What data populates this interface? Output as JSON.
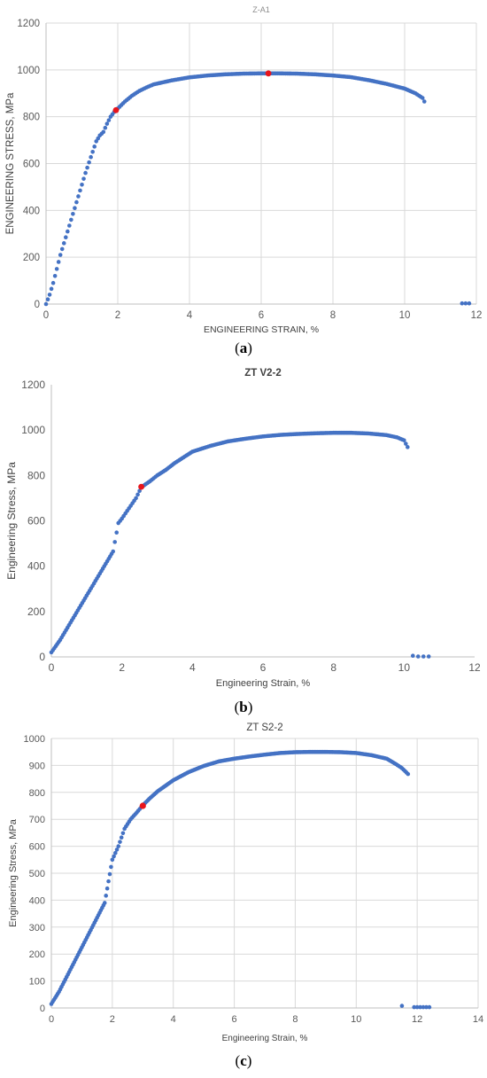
{
  "colors": {
    "series": "#4472C4",
    "marker": "#E8141B",
    "grid": "#D9D9D9",
    "axis_text": "#595959"
  },
  "panels": [
    {
      "caption": {
        "open": "(",
        "letter": "a",
        "close": ")"
      },
      "chart_data": {
        "type": "scatter",
        "title": "Z-A1",
        "xlabel": "ENGINEERING STRAIN, %",
        "ylabel": "ENGINEERING STRESS, MPa",
        "xlim": [
          0,
          12
        ],
        "ylim": [
          0,
          1200
        ],
        "xticks": [
          "0",
          "2",
          "4",
          "6",
          "8",
          "10",
          "12"
        ],
        "yticks": [
          "0",
          "200",
          "400",
          "600",
          "800",
          "1000",
          "1200"
        ],
        "grid": true,
        "legend": "none",
        "series": [
          {
            "points": [
              [
                0,
                0
              ],
              [
                0.1,
                40
              ],
              [
                0.2,
                90
              ],
              [
                0.3,
                150
              ],
              [
                0.4,
                210
              ],
              [
                0.5,
                260
              ],
              [
                0.6,
                310
              ],
              [
                0.7,
                360
              ],
              [
                0.8,
                410
              ],
              [
                0.9,
                460
              ],
              [
                1.0,
                510
              ],
              [
                1.1,
                560
              ],
              [
                1.2,
                605
              ],
              [
                1.3,
                650
              ],
              [
                1.4,
                695
              ],
              [
                1.5,
                720
              ],
              [
                1.6,
                735
              ],
              [
                1.7,
                770
              ],
              [
                1.8,
                800
              ],
              [
                1.9,
                820
              ],
              [
                2.0,
                835
              ],
              [
                2.2,
                865
              ],
              [
                2.4,
                890
              ],
              [
                2.6,
                910
              ],
              [
                2.8,
                925
              ],
              [
                3.0,
                938
              ],
              [
                3.5,
                955
              ],
              [
                4.0,
                968
              ],
              [
                4.5,
                976
              ],
              [
                5.0,
                981
              ],
              [
                5.5,
                984
              ],
              [
                6.0,
                985
              ],
              [
                6.5,
                985
              ],
              [
                7.0,
                984
              ],
              [
                7.5,
                981
              ],
              [
                8.0,
                976
              ],
              [
                8.5,
                969
              ],
              [
                9.0,
                956
              ],
              [
                9.5,
                940
              ],
              [
                10.0,
                920
              ],
              [
                10.3,
                900
              ],
              [
                10.5,
                880
              ],
              [
                10.55,
                865
              ]
            ],
            "fracture": [
              [
                11.6,
                3
              ],
              [
                11.7,
                3
              ],
              [
                11.8,
                3
              ]
            ]
          }
        ],
        "markers": [
          [
            1.95,
            828
          ],
          [
            6.2,
            985
          ]
        ]
      }
    },
    {
      "caption": {
        "open": "(",
        "letter": "b",
        "close": ")"
      },
      "chart_data": {
        "type": "scatter",
        "title": "ZT V2-2",
        "xlabel": "Engineering Strain, %",
        "ylabel": "Engineering Stress, MPa",
        "xlim": [
          0,
          12
        ],
        "ylim": [
          0,
          1200
        ],
        "xticks": [
          "0",
          "2",
          "4",
          "6",
          "8",
          "10",
          "12"
        ],
        "yticks": [
          "0",
          "200",
          "400",
          "600",
          "800",
          "1000",
          "1200"
        ],
        "grid": false,
        "legend": "none",
        "series": [
          {
            "points": [
              [
                0,
                20
              ],
              [
                0.25,
                75
              ],
              [
                0.5,
                140
              ],
              [
                0.75,
                205
              ],
              [
                1.0,
                270
              ],
              [
                1.25,
                335
              ],
              [
                1.5,
                400
              ],
              [
                1.75,
                465
              ],
              [
                1.9,
                590
              ],
              [
                2.0,
                610
              ],
              [
                2.2,
                655
              ],
              [
                2.4,
                700
              ],
              [
                2.55,
                748
              ],
              [
                2.8,
                775
              ],
              [
                3.0,
                800
              ],
              [
                3.25,
                825
              ],
              [
                3.5,
                855
              ],
              [
                3.75,
                880
              ],
              [
                4.0,
                905
              ],
              [
                4.5,
                930
              ],
              [
                5.0,
                950
              ],
              [
                5.5,
                962
              ],
              [
                6.0,
                972
              ],
              [
                6.5,
                979
              ],
              [
                7.0,
                983
              ],
              [
                7.5,
                986
              ],
              [
                8.0,
                988
              ],
              [
                8.5,
                988
              ],
              [
                9.0,
                985
              ],
              [
                9.5,
                978
              ],
              [
                9.8,
                968
              ],
              [
                10.0,
                955
              ],
              [
                10.1,
                925
              ]
            ],
            "fracture": [
              [
                10.25,
                5
              ],
              [
                10.4,
                2
              ],
              [
                10.55,
                2
              ],
              [
                10.7,
                2
              ]
            ]
          }
        ],
        "markers": [
          [
            2.55,
            750
          ]
        ]
      }
    },
    {
      "caption": {
        "open": "(",
        "letter": "c",
        "close": ")"
      },
      "chart_data": {
        "type": "scatter",
        "title": "ZT S2-2",
        "xlabel": "Engineering Strain, %",
        "ylabel": "Engineering Stress, MPa",
        "xlim": [
          0,
          14
        ],
        "ylim": [
          0,
          1000
        ],
        "xticks": [
          "0",
          "2",
          "4",
          "6",
          "8",
          "10",
          "12",
          "14"
        ],
        "yticks": [
          "0",
          "100",
          "200",
          "300",
          "400",
          "500",
          "600",
          "700",
          "800",
          "900",
          "1000"
        ],
        "grid": true,
        "legend": "none",
        "series": [
          {
            "points": [
              [
                0,
                15
              ],
              [
                0.25,
                60
              ],
              [
                0.5,
                115
              ],
              [
                0.75,
                170
              ],
              [
                1.0,
                225
              ],
              [
                1.25,
                280
              ],
              [
                1.5,
                335
              ],
              [
                1.75,
                390
              ],
              [
                2.0,
                550
              ],
              [
                2.2,
                600
              ],
              [
                2.4,
                665
              ],
              [
                2.6,
                700
              ],
              [
                2.8,
                725
              ],
              [
                3.0,
                752
              ],
              [
                3.25,
                780
              ],
              [
                3.5,
                805
              ],
              [
                3.75,
                825
              ],
              [
                4.0,
                845
              ],
              [
                4.5,
                875
              ],
              [
                5.0,
                898
              ],
              [
                5.5,
                915
              ],
              [
                6.0,
                925
              ],
              [
                6.5,
                933
              ],
              [
                7.0,
                940
              ],
              [
                7.5,
                946
              ],
              [
                8.0,
                949
              ],
              [
                8.5,
                950
              ],
              [
                9.0,
                950
              ],
              [
                9.5,
                949
              ],
              [
                10.0,
                946
              ],
              [
                10.5,
                938
              ],
              [
                11.0,
                925
              ],
              [
                11.3,
                905
              ],
              [
                11.5,
                890
              ],
              [
                11.7,
                868
              ]
            ],
            "fracture": [
              [
                11.5,
                8
              ],
              [
                11.9,
                3
              ],
              [
                12.0,
                3
              ],
              [
                12.1,
                3
              ],
              [
                12.2,
                3
              ],
              [
                12.3,
                3
              ],
              [
                12.4,
                3
              ]
            ]
          }
        ],
        "markers": [
          [
            3.0,
            750
          ]
        ]
      }
    }
  ]
}
